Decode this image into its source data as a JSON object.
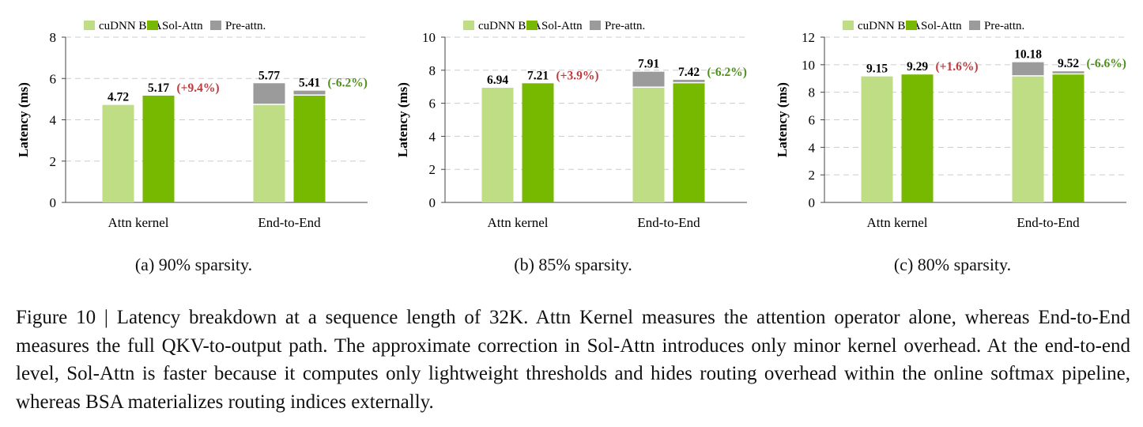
{
  "colors": {
    "cudnn": "#bedd84",
    "sol": "#76b900",
    "pre": "#9b9b9b",
    "pos": "#c0393b",
    "neg": "#4f8f1c",
    "grid": "#cccccc",
    "axis": "#444444"
  },
  "legend": [
    "cuDNN BSA",
    "Sol-Attn",
    "Pre-attn."
  ],
  "chart_data": [
    {
      "type": "bar",
      "stacked": true,
      "categories": [
        "Attn kernel",
        "End-to-End"
      ],
      "ylabel": "Latency (ms)",
      "ylim": [
        0,
        8
      ],
      "yticks": [
        0,
        2,
        4,
        6,
        8
      ],
      "grid": true,
      "legend_position": "top",
      "series": [
        {
          "name": "cuDNN BSA",
          "base": [
            4.72,
            4.72
          ],
          "pre": [
            0,
            1.05
          ],
          "totals": [
            "4.72",
            "5.77"
          ]
        },
        {
          "name": "Sol-Attn",
          "base": [
            5.17,
            5.17
          ],
          "pre": [
            0,
            0.24
          ],
          "totals": [
            "5.17",
            "5.41"
          ]
        }
      ],
      "deltas": [
        "(+9.4%)",
        "(-6.2%)"
      ],
      "subcaption": "(a) 90% sparsity."
    },
    {
      "type": "bar",
      "stacked": true,
      "categories": [
        "Attn kernel",
        "End-to-End"
      ],
      "ylabel": "Latency (ms)",
      "ylim": [
        0,
        10
      ],
      "yticks": [
        0,
        2,
        4,
        6,
        8,
        10
      ],
      "grid": true,
      "legend_position": "top",
      "series": [
        {
          "name": "cuDNN BSA",
          "base": [
            6.94,
            6.94
          ],
          "pre": [
            0,
            0.97
          ],
          "totals": [
            "6.94",
            "7.91"
          ]
        },
        {
          "name": "Sol-Attn",
          "base": [
            7.21,
            7.21
          ],
          "pre": [
            0,
            0.21
          ],
          "totals": [
            "7.21",
            "7.42"
          ]
        }
      ],
      "deltas": [
        "(+3.9%)",
        "(-6.2%)"
      ],
      "subcaption": "(b) 85% sparsity."
    },
    {
      "type": "bar",
      "stacked": true,
      "categories": [
        "Attn kernel",
        "End-to-End"
      ],
      "ylabel": "Latency (ms)",
      "ylim": [
        0,
        12
      ],
      "yticks": [
        0,
        2,
        4,
        6,
        8,
        10,
        12
      ],
      "grid": true,
      "legend_position": "top",
      "series": [
        {
          "name": "cuDNN BSA",
          "base": [
            9.15,
            9.15
          ],
          "pre": [
            0,
            1.03
          ],
          "totals": [
            "9.15",
            "10.18"
          ]
        },
        {
          "name": "Sol-Attn",
          "base": [
            9.29,
            9.29
          ],
          "pre": [
            0,
            0.23
          ],
          "totals": [
            "9.29",
            "9.52"
          ]
        }
      ],
      "deltas": [
        "(+1.6%)",
        "(-6.6%)"
      ],
      "subcaption": "(c) 80% sparsity."
    }
  ],
  "caption": "Figure 10 | Latency breakdown at a sequence length of 32K. Attn Kernel measures the attention operator alone, whereas End-to-End measures the full QKV-to-output path. The approximate correction in Sol-Attn introduces only minor kernel overhead. At the end-to-end level, Sol-Attn is faster because it computes only lightweight thresholds and hides routing overhead within the online softmax pipeline, whereas BSA materializes routing indices externally."
}
